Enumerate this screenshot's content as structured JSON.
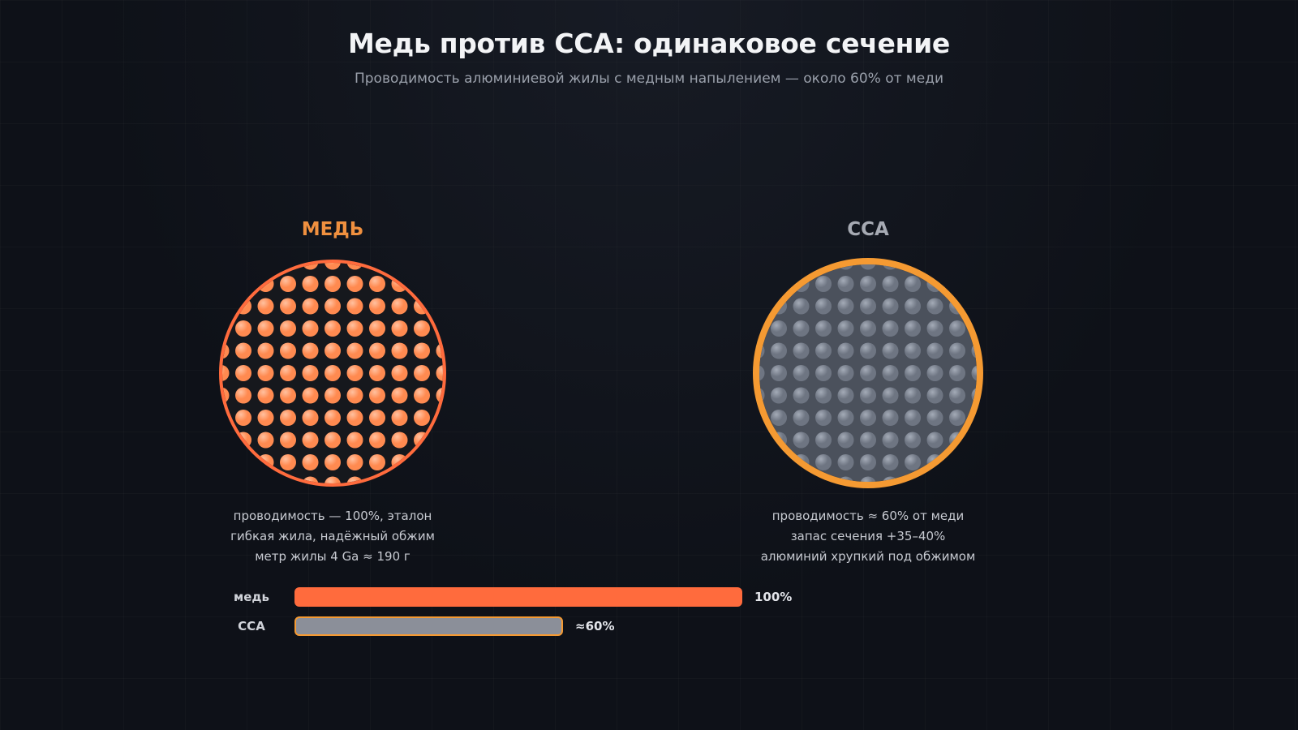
{
  "header": {
    "title": "Медь против CCA: одинаковое сечение",
    "subtitle": "Проводимость алюминиевой жилы с медным напылением — около 60% от меди"
  },
  "panels": {
    "copper": {
      "title": "МЕДЬ",
      "notes": [
        "проводимость — 100%, эталон",
        "гибкая жила, надёжный обжим",
        "метр жилы 4 Ga ≈ 190 г"
      ],
      "colors": {
        "ring": "#ff6b3d",
        "strand": "#ff8a50",
        "strand_highlight": "#ffc1a0",
        "core": "#16181d"
      }
    },
    "cca": {
      "title": "CCA",
      "notes": [
        "проводимость ≈ 60% от меди",
        "запас сечения +35–40%",
        "алюминий хрупкий под обжимом"
      ],
      "colors": {
        "ring": "#f59a32",
        "strand": "#6e7582",
        "strand_highlight": "#a4abb7",
        "core": "#4b515c"
      }
    }
  },
  "bars": [
    {
      "label": "медь",
      "value_label": "100%",
      "fraction": 1.0,
      "style": "copper"
    },
    {
      "label": "CCA",
      "value_label": "≈60%",
      "fraction": 0.6,
      "style": "cca"
    }
  ]
}
